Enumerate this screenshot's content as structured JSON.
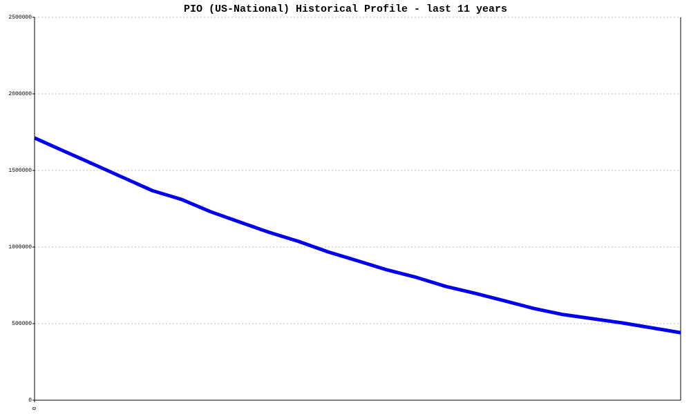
{
  "chart_data": {
    "type": "line",
    "title": "PIO (US-National) Historical Profile - last 11 years",
    "x": [
      0,
      1,
      2,
      3,
      4,
      5,
      6,
      7,
      8,
      9,
      10,
      11,
      12,
      13,
      14,
      15,
      16,
      17,
      18,
      19,
      20,
      21,
      22
    ],
    "series": [
      {
        "color": "#0000ee",
        "values": [
          1712000,
          1626000,
          1541000,
          1455000,
          1369000,
          1311000,
          1230000,
          1162000,
          1095000,
          1036000,
          968000,
          910000,
          851000,
          802000,
          743000,
          698000,
          649000,
          599000,
          559000,
          532000,
          505000,
          473000,
          441000
        ]
      }
    ],
    "xlim": [
      0,
      22
    ],
    "xticks": [
      0
    ],
    "ylim": [
      0,
      2500000
    ],
    "yticks": [
      0,
      500000,
      1000000,
      1500000,
      2000000,
      2500000
    ],
    "grid": true
  }
}
